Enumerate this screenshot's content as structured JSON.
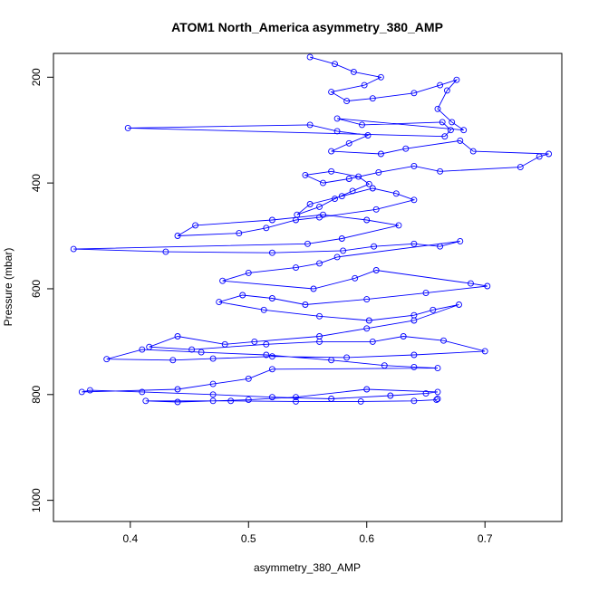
{
  "chart_data": {
    "type": "scatter",
    "title": "ATOM1 North_America asymmetry_380_AMP",
    "xlabel": "asymmetry_380_AMP",
    "ylabel": "Pressure (mbar)",
    "xlim": [
      0.335,
      0.765
    ],
    "ylim": [
      1040,
      155
    ],
    "y_reversed": true,
    "x_ticks": [
      "0.4",
      "0.5",
      "0.6",
      "0.7"
    ],
    "y_ticks": [
      "200",
      "400",
      "600",
      "800",
      "1000"
    ],
    "grid": false,
    "legend": "none",
    "series_color": "#0000ff",
    "series": [
      {
        "marker": "open-circle",
        "connected": true,
        "x": [
          0.552,
          0.573,
          0.589,
          0.612,
          0.598,
          0.57,
          0.583,
          0.605,
          0.64,
          0.662,
          0.676,
          0.668,
          0.66,
          0.672,
          0.682,
          0.575,
          0.596,
          0.664,
          0.671,
          0.666,
          0.398,
          0.552,
          0.575,
          0.601,
          0.585,
          0.57,
          0.612,
          0.633,
          0.679,
          0.69,
          0.754,
          0.746,
          0.73,
          0.662,
          0.64,
          0.61,
          0.585,
          0.563,
          0.548,
          0.57,
          0.593,
          0.602,
          0.588,
          0.573,
          0.56,
          0.541,
          0.552,
          0.579,
          0.605,
          0.625,
          0.64,
          0.608,
          0.56,
          0.54,
          0.515,
          0.492,
          0.44,
          0.455,
          0.52,
          0.563,
          0.6,
          0.627,
          0.579,
          0.55,
          0.352,
          0.43,
          0.52,
          0.58,
          0.606,
          0.64,
          0.662,
          0.679,
          0.575,
          0.56,
          0.54,
          0.5,
          0.478,
          0.555,
          0.59,
          0.608,
          0.688,
          0.702,
          0.65,
          0.6,
          0.548,
          0.52,
          0.495,
          0.475,
          0.513,
          0.56,
          0.602,
          0.64,
          0.656,
          0.678,
          0.64,
          0.6,
          0.56,
          0.505,
          0.48,
          0.44,
          0.416,
          0.452,
          0.515,
          0.56,
          0.605,
          0.631,
          0.665,
          0.7,
          0.64,
          0.583,
          0.52,
          0.47,
          0.436,
          0.38,
          0.41,
          0.46,
          0.515,
          0.57,
          0.615,
          0.64,
          0.66,
          0.52,
          0.5,
          0.47,
          0.44,
          0.359,
          0.366,
          0.41,
          0.47,
          0.52,
          0.57,
          0.62,
          0.65,
          0.66,
          0.6,
          0.54,
          0.5,
          0.47,
          0.44,
          0.413,
          0.485,
          0.54,
          0.595,
          0.64,
          0.659,
          0.66
        ],
        "y": [
          162,
          175,
          190,
          200,
          215,
          228,
          245,
          240,
          230,
          215,
          205,
          225,
          260,
          285,
          300,
          278,
          290,
          285,
          300,
          312,
          296,
          290,
          302,
          310,
          325,
          340,
          345,
          335,
          320,
          340,
          345,
          350,
          370,
          378,
          368,
          380,
          392,
          400,
          385,
          378,
          388,
          402,
          415,
          430,
          445,
          460,
          440,
          425,
          410,
          420,
          432,
          450,
          465,
          470,
          485,
          495,
          500,
          480,
          470,
          460,
          470,
          480,
          505,
          515,
          525,
          530,
          532,
          528,
          520,
          515,
          520,
          510,
          540,
          552,
          560,
          570,
          585,
          600,
          580,
          565,
          590,
          595,
          608,
          620,
          630,
          618,
          612,
          625,
          640,
          652,
          660,
          650,
          640,
          630,
          660,
          675,
          690,
          700,
          705,
          690,
          710,
          715,
          705,
          700,
          700,
          690,
          698,
          718,
          725,
          730,
          728,
          732,
          735,
          733,
          715,
          720,
          725,
          735,
          745,
          748,
          750,
          752,
          770,
          780,
          790,
          795,
          792,
          795,
          800,
          805,
          808,
          802,
          798,
          795,
          790,
          805,
          810,
          812,
          814,
          812,
          812,
          813,
          813,
          812,
          810,
          808
        ]
      }
    ]
  }
}
